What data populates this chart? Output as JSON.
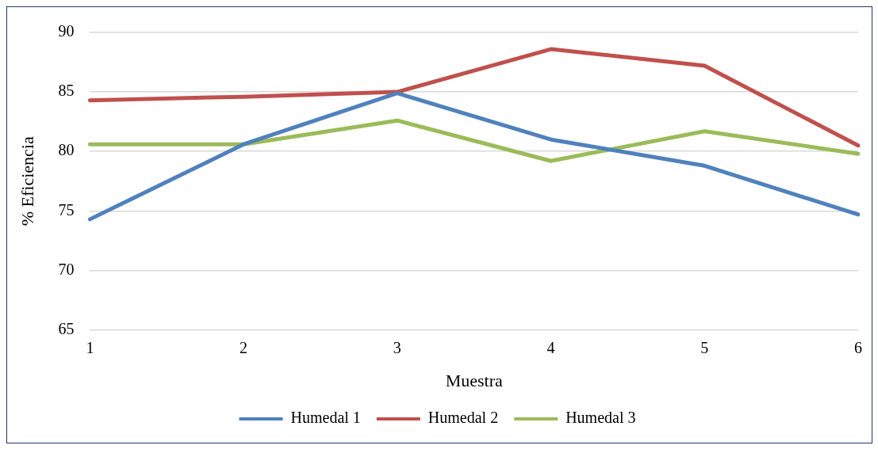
{
  "chart_data": {
    "type": "line",
    "xlabel": "Muestra",
    "ylabel": "% Eficiencia",
    "categories": [
      "1",
      "2",
      "3",
      "4",
      "5",
      "6"
    ],
    "ylim": [
      65,
      90
    ],
    "yticks": [
      65,
      70,
      75,
      80,
      85,
      90
    ],
    "grid": "y",
    "legend": "bottom",
    "marker": "none",
    "line_style": "solid",
    "series": [
      {
        "name": "Humedal 1",
        "color": "#4f81bd",
        "values": [
          74.3,
          80.6,
          84.9,
          81.0,
          78.8,
          74.7
        ]
      },
      {
        "name": "Humedal 2",
        "color": "#c0504d",
        "values": [
          84.3,
          84.6,
          85.0,
          88.6,
          87.2,
          80.5
        ]
      },
      {
        "name": "Humedal 3",
        "color": "#9bbb59",
        "values": [
          80.6,
          80.6,
          82.6,
          79.2,
          81.7,
          79.8
        ]
      }
    ]
  }
}
